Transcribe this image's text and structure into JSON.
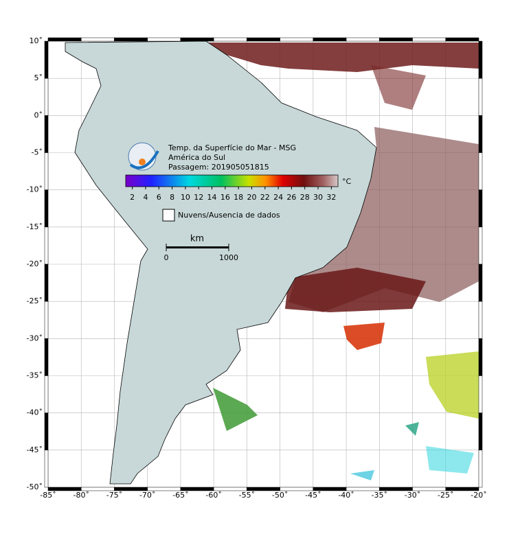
{
  "map": {
    "title_lines": [
      "Temp. da Superfície do Mar - MSG",
      "América do Sul",
      "Passagem: 201905051815"
    ],
    "extent": {
      "lon": [
        -85,
        -20
      ],
      "lat": [
        -50,
        10
      ]
    },
    "lon_ticks": [
      {
        "value": -85,
        "label": "-85˚"
      },
      {
        "value": -80,
        "label": "-80˚"
      },
      {
        "value": -75,
        "label": "-75˚"
      },
      {
        "value": -70,
        "label": "-70˚"
      },
      {
        "value": -65,
        "label": "-65˚"
      },
      {
        "value": -60,
        "label": "-60˚"
      },
      {
        "value": -55,
        "label": "-55˚"
      },
      {
        "value": -50,
        "label": "-50˚"
      },
      {
        "value": -45,
        "label": "-45˚"
      },
      {
        "value": -40,
        "label": "-40˚"
      },
      {
        "value": -35,
        "label": "-35˚"
      },
      {
        "value": -30,
        "label": "-30˚"
      },
      {
        "value": -25,
        "label": "-25˚"
      },
      {
        "value": -20,
        "label": "-20˚"
      }
    ],
    "lat_ticks": [
      {
        "value": 10,
        "label": "10˚"
      },
      {
        "value": 5,
        "label": "5˚"
      },
      {
        "value": 0,
        "label": "0˚"
      },
      {
        "value": -5,
        "label": "-5˚"
      },
      {
        "value": -10,
        "label": "-10˚"
      },
      {
        "value": -15,
        "label": "-15˚"
      },
      {
        "value": -20,
        "label": "-20˚"
      },
      {
        "value": -25,
        "label": "-25˚"
      },
      {
        "value": -30,
        "label": "-30˚"
      },
      {
        "value": -35,
        "label": "-35˚"
      },
      {
        "value": -40,
        "label": "-40˚"
      },
      {
        "value": -45,
        "label": "-45˚"
      },
      {
        "value": -50,
        "label": "-50˚"
      }
    ],
    "colorbar": {
      "unit": "°C",
      "range": [
        1,
        33
      ],
      "ticks": [
        2,
        4,
        6,
        8,
        10,
        12,
        14,
        16,
        18,
        20,
        22,
        24,
        26,
        28,
        30,
        32
      ]
    },
    "legend": "Nuvens/Ausencia de dados",
    "scale": {
      "unit": "km",
      "ticks": [
        0,
        1000
      ]
    }
  }
}
